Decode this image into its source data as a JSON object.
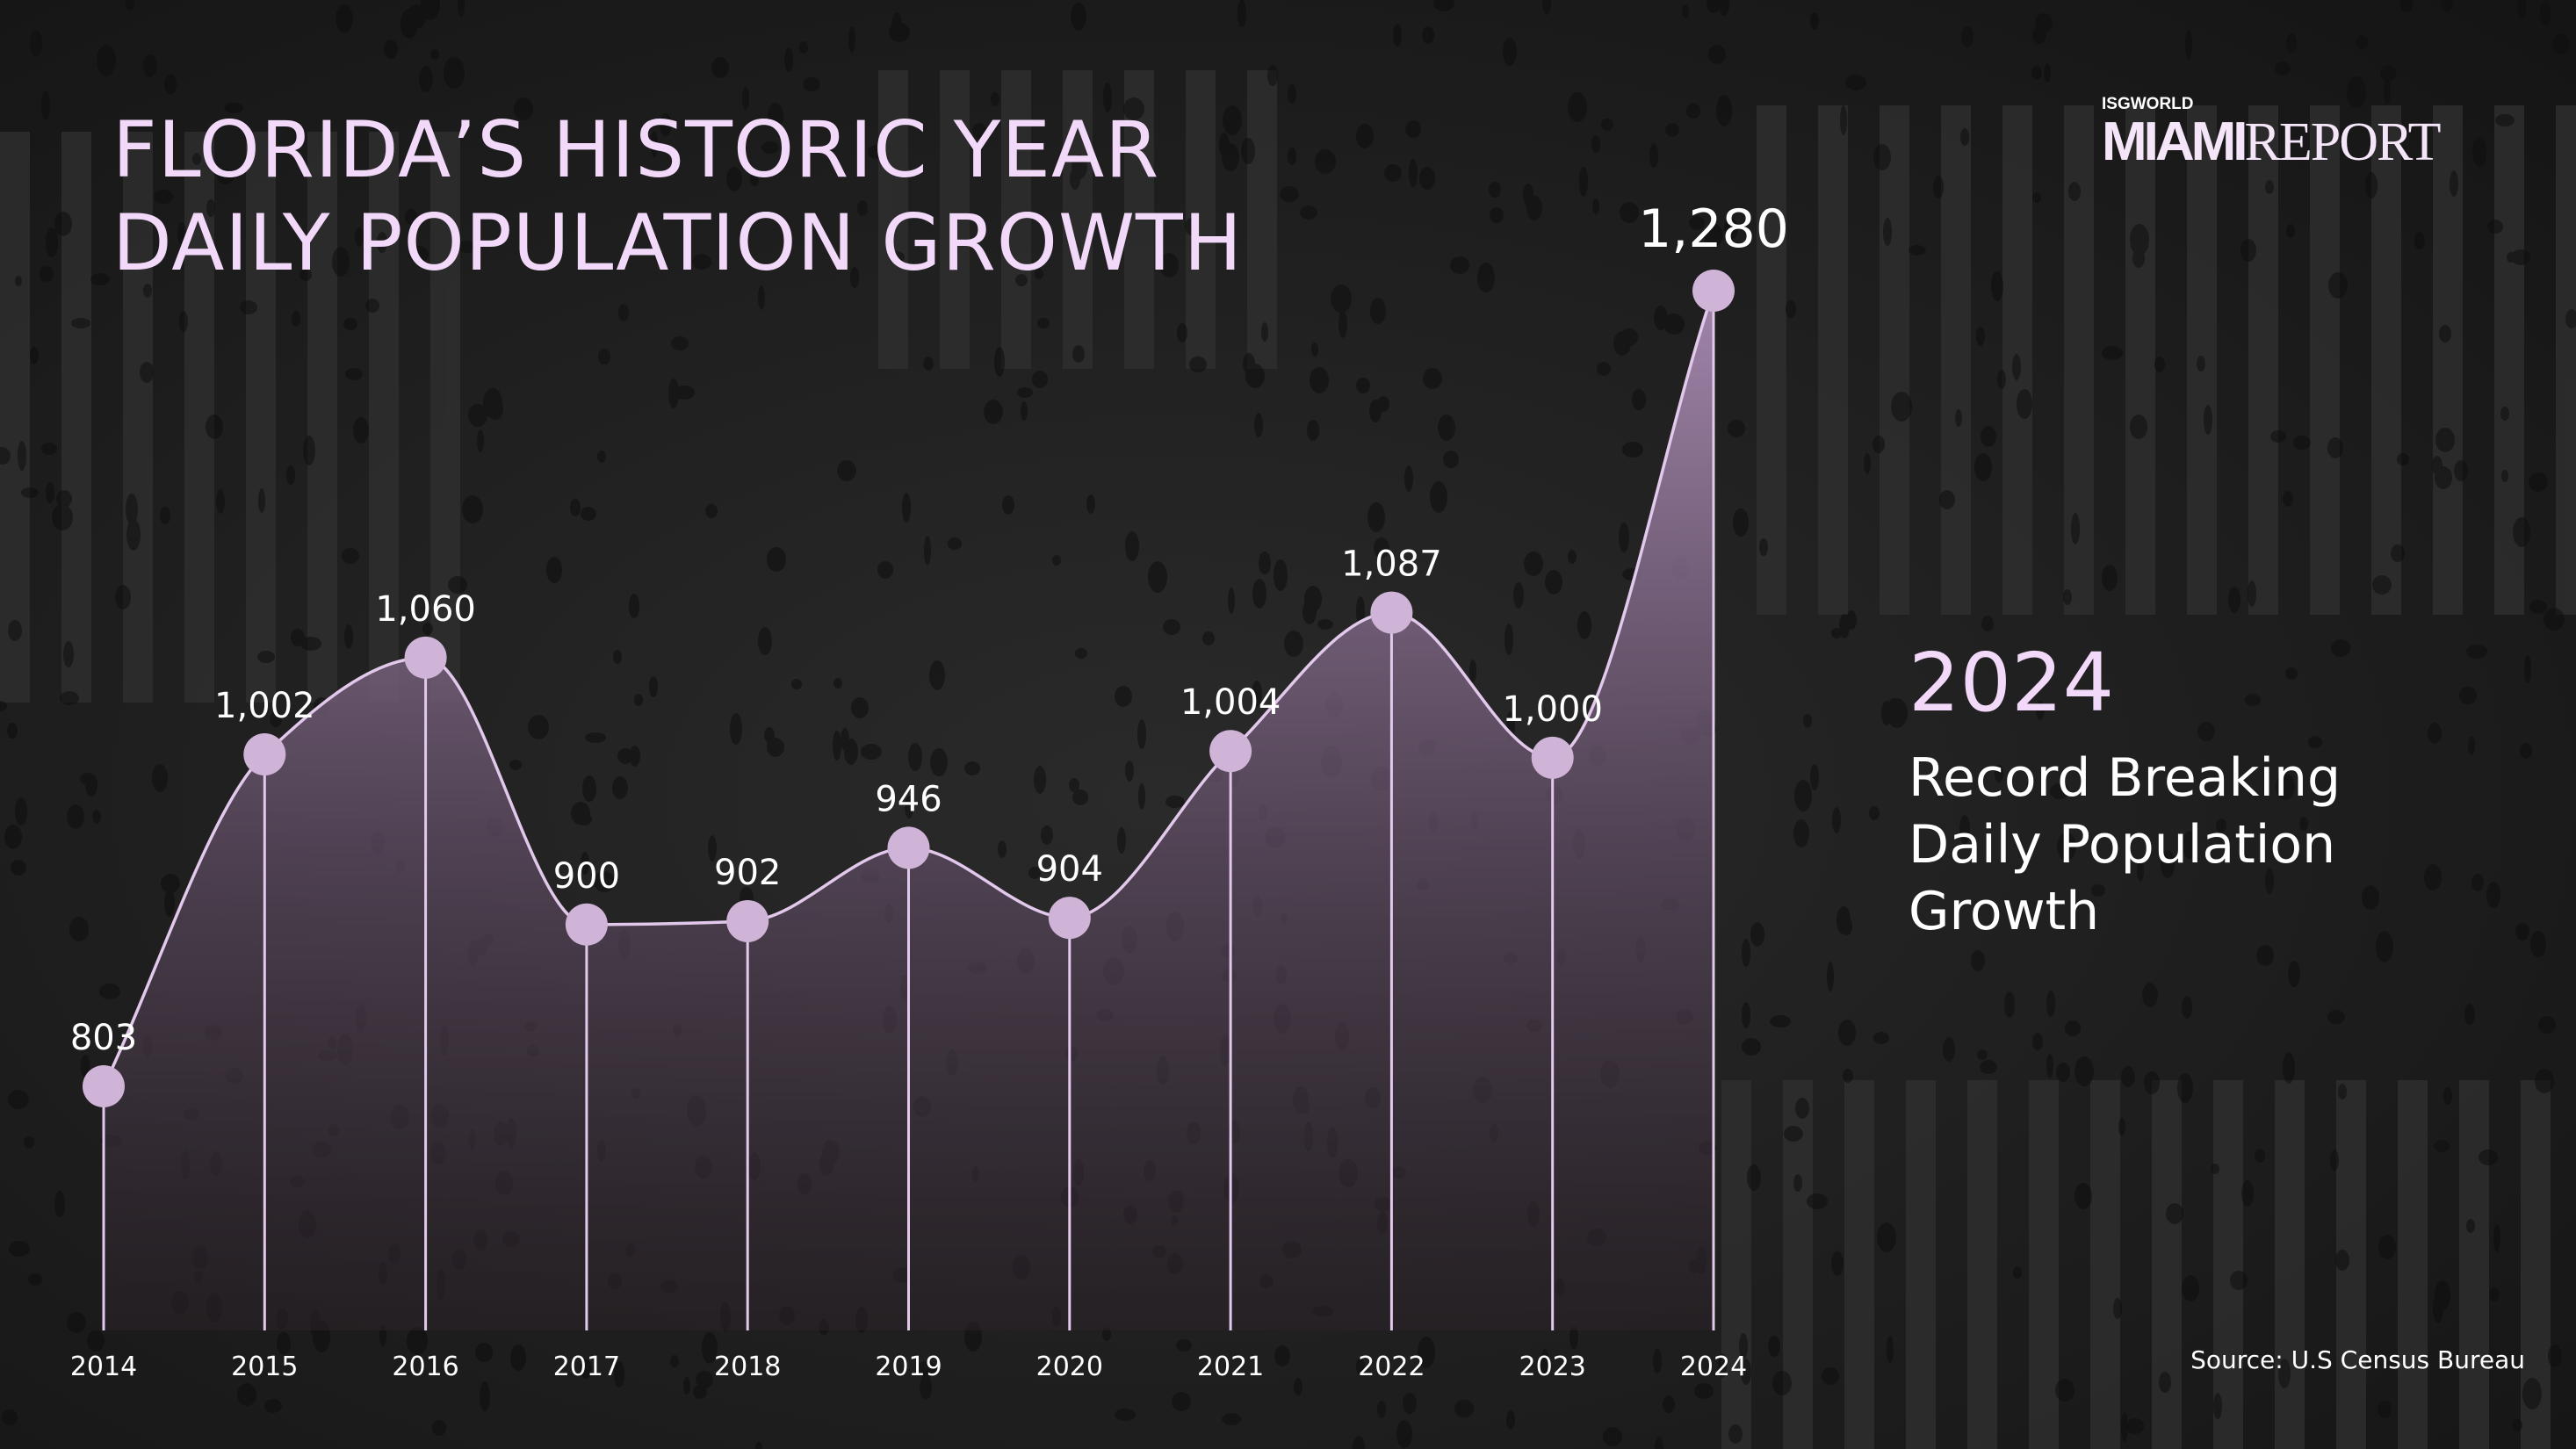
{
  "title": {
    "line1": "FLORIDA’S HISTORIC YEAR",
    "line2": "DAILY POPULATION GROWTH"
  },
  "logo": {
    "small": "ISGWORLD",
    "miami": "MIAMI",
    "report": "REPORT"
  },
  "highlight": {
    "year": "2024",
    "line1": "Record Breaking",
    "line2": "Daily Population",
    "line3": "Growth"
  },
  "source": "Source: U.S Census Bureau",
  "colors": {
    "accent": "#f2d9fa",
    "point": "#cfb4d8",
    "line": "#e2c9ec",
    "area_top": "#a98bb3",
    "area_bottom": "#2a2228"
  },
  "chart_data": {
    "type": "area",
    "title": "Daily Population Growth",
    "x": [
      "2014",
      "2015",
      "2016",
      "2017",
      "2018",
      "2019",
      "2020",
      "2021",
      "2022",
      "2023",
      "2024"
    ],
    "values": [
      803,
      1002,
      1060,
      900,
      902,
      946,
      904,
      1004,
      1087,
      1000,
      1280
    ],
    "value_labels": [
      "803",
      "1,002",
      "1,060",
      "900",
      "902",
      "946",
      "904",
      "1,004",
      "1,087",
      "1,000",
      "1,280"
    ],
    "highlight_index": 10,
    "xlabel": "",
    "ylabel": "",
    "grid": false
  }
}
